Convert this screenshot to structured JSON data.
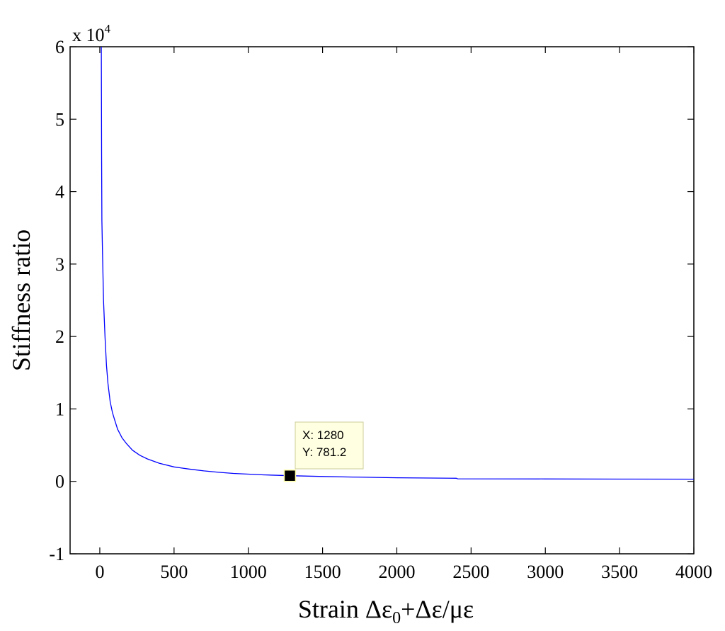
{
  "chart_data": {
    "type": "line",
    "title": "",
    "xlabel": "Strain Δε",
    "xlabel_sub": "0",
    "xlabel_rest": "+Δε/με",
    "ylabel": "Stiffness ratio",
    "y_exponent_prefix": "x 10",
    "y_exponent_power": "4",
    "xlim": [
      -200,
      4000
    ],
    "ylim": [
      -1,
      6
    ],
    "y_scale_factor": 10000,
    "xticks": [
      0,
      500,
      1000,
      1500,
      2000,
      2500,
      3000,
      3500,
      4000
    ],
    "yticks": [
      -1,
      0,
      1,
      2,
      3,
      4,
      5,
      6
    ],
    "grid": false,
    "line_color": "#0000ff",
    "series": [
      {
        "values": [
          [
            10,
            6.0
          ],
          [
            12,
            4.5
          ],
          [
            14,
            3.6
          ],
          [
            18,
            3.2
          ],
          [
            25,
            2.5
          ],
          [
            35,
            2.0
          ],
          [
            45,
            1.6
          ],
          [
            55,
            1.35
          ],
          [
            70,
            1.1
          ],
          [
            85,
            0.95
          ],
          [
            100,
            0.85
          ],
          [
            120,
            0.72
          ],
          [
            150,
            0.6
          ],
          [
            180,
            0.52
          ],
          [
            220,
            0.43
          ],
          [
            270,
            0.36
          ],
          [
            320,
            0.31
          ],
          [
            400,
            0.25
          ],
          [
            500,
            0.2
          ],
          [
            600,
            0.17
          ],
          [
            700,
            0.145
          ],
          [
            800,
            0.125
          ],
          [
            900,
            0.11
          ],
          [
            1000,
            0.1
          ],
          [
            1100,
            0.09
          ],
          [
            1280,
            0.0781
          ],
          [
            1500,
            0.068
          ],
          [
            1700,
            0.06
          ],
          [
            2000,
            0.05
          ],
          [
            2400,
            0.043
          ],
          [
            2410,
            0.035
          ],
          [
            3000,
            0.033
          ],
          [
            3500,
            0.031
          ],
          [
            4000,
            0.03
          ]
        ]
      }
    ],
    "datatip": {
      "point": [
        1280,
        781.2
      ],
      "x_text": "X: 1280",
      "y_text": "Y: 781.2"
    }
  }
}
